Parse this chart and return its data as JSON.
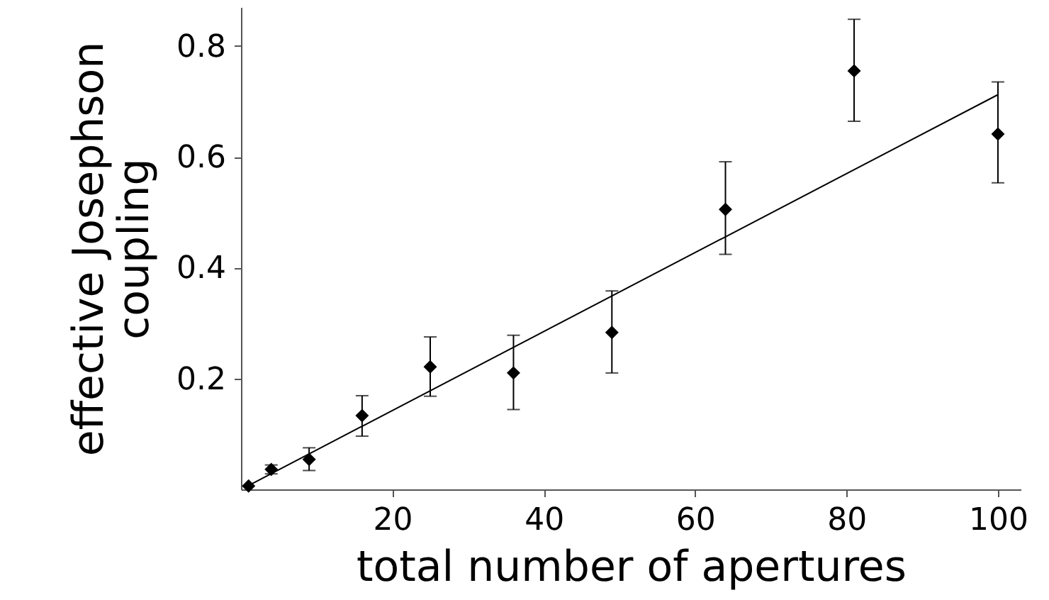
{
  "chart_data": {
    "type": "scatter",
    "xlabel": "total number of apertures",
    "ylabel": "effective Josephson coupling",
    "xlim": [
      0,
      103
    ],
    "ylim": [
      0,
      0.87
    ],
    "xticks": [
      20,
      40,
      60,
      80,
      100
    ],
    "yticks": [
      0.2,
      0.4,
      0.6,
      0.8
    ],
    "grid": false,
    "marker": "diamond",
    "series": [
      {
        "color": "#000000",
        "x": [
          1,
          4,
          9,
          16,
          25,
          36,
          49,
          64,
          81,
          100
        ],
        "values": [
          0.006,
          0.036,
          0.054,
          0.133,
          0.221,
          0.21,
          0.283,
          0.505,
          0.755,
          0.641
        ],
        "errors": [
          null,
          [
            0.028,
            0.044
          ],
          [
            0.034,
            0.075
          ],
          [
            0.096,
            0.169
          ],
          [
            0.168,
            0.275
          ],
          [
            0.144,
            0.278
          ],
          [
            0.21,
            0.358
          ],
          [
            0.424,
            0.591
          ],
          [
            0.664,
            0.848
          ],
          [
            0.553,
            0.735
          ]
        ]
      },
      {
        "type": "line",
        "color": "#000000",
        "line_style": "solid",
        "marker": "none",
        "x": [
          1,
          100
        ],
        "values": [
          0.007,
          0.712
        ]
      }
    ]
  }
}
